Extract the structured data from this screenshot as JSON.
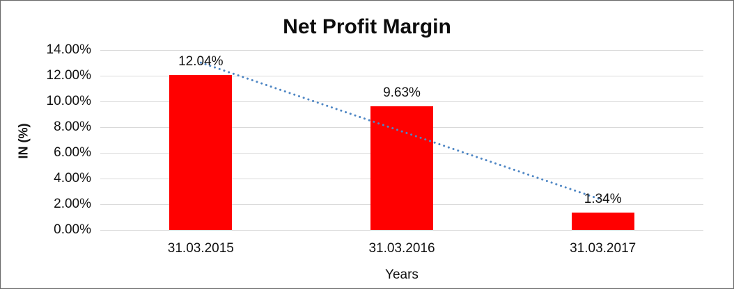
{
  "chart_data": {
    "type": "bar",
    "title": "Net Profit Margin",
    "xlabel": "Years",
    "ylabel": "IN (%)",
    "categories": [
      "31.03.2015",
      "31.03.2016",
      "31.03.2017"
    ],
    "values": [
      12.04,
      9.63,
      1.34
    ],
    "data_labels": [
      "12.04%",
      "9.63%",
      "1.34%"
    ],
    "y_ticks": [
      "14.00%",
      "12.00%",
      "10.00%",
      "8.00%",
      "6.00%",
      "4.00%",
      "2.00%",
      "0.00%"
    ],
    "ylim": [
      0,
      14
    ],
    "grid": "horizontal",
    "legend": "none",
    "colors": {
      "bar": "#FF0000",
      "trendline": "#4E86C4",
      "gridline": "#D9D9D9",
      "text": "#111111"
    },
    "trendline": {
      "type": "linear",
      "style": "dotted",
      "endpoints_pct": [
        13.02,
        2.32
      ]
    }
  }
}
